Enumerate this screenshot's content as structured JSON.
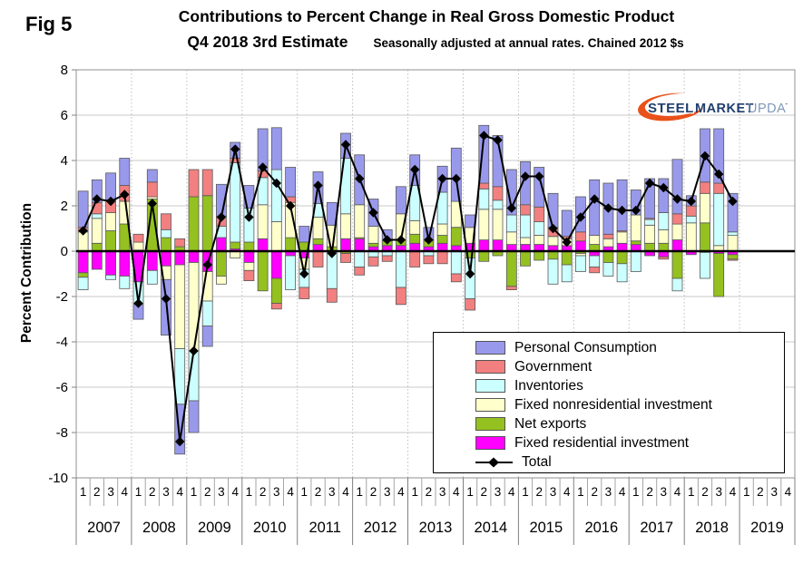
{
  "fig_label": "Fig 5",
  "title": "Contributions to Percent Change in Real Gross Domestic Product",
  "subtitle": {
    "estimate": "Q4 2018 3rd Estimate",
    "note": "Seasonally adjusted at annual rates. Chained 2012 $s"
  },
  "logo": {
    "steel": "STEEL",
    "market": "MARKET",
    "update": "UPDATE",
    "colors": {
      "swoosh": "#E8521A",
      "navy": "#1F3E6E",
      "light": "#7E99B8"
    }
  },
  "y_axis": {
    "label": "Percent Contribution",
    "ticks": [
      8,
      6,
      4,
      2,
      0,
      -2,
      -4,
      -6,
      -8,
      -10
    ],
    "min": -10,
    "max": 8
  },
  "x_axis": {
    "years": [
      "2007",
      "2008",
      "2009",
      "2010",
      "2011",
      "2012",
      "2013",
      "2014",
      "2015",
      "2016",
      "2017",
      "2018",
      "2019"
    ],
    "quarters_per_year": [
      "1",
      "2",
      "3",
      "4"
    ]
  },
  "legend": {
    "items": [
      {
        "name": "Personal Consumption",
        "color": "#9999EC"
      },
      {
        "name": "Government",
        "color": "#F28080"
      },
      {
        "name": "Inventories",
        "color": "#CCFFFF"
      },
      {
        "name": "Fixed nonresidential investment",
        "color": "#FFFFCC"
      },
      {
        "name": "Net exports",
        "color": "#94C11F"
      },
      {
        "name": "Fixed residential investment",
        "color": "#FF00FF"
      }
    ],
    "total_label": "Total"
  },
  "chart_data": {
    "type": "stacked-bar-with-line",
    "title": "Contributions to Percent Change in Real Gross Domestic Product",
    "ylabel": "Percent Contribution",
    "ylim": [
      -10,
      8
    ],
    "grid_step": 2,
    "legend_position": "inside-bottom-right",
    "years": [
      "2007",
      "2008",
      "2009",
      "2010",
      "2011",
      "2012",
      "2013",
      "2014",
      "2015",
      "2016",
      "2017",
      "2018",
      "2019"
    ],
    "categories_note": "quarters 1-4 per year; bars plotted 2007Q1 through 2018Q4, 2019 empty",
    "n_points": 48,
    "stack_order": [
      "Fixed residential investment",
      "Net exports",
      "Fixed nonresidential investment",
      "Inventories",
      "Government",
      "Personal Consumption"
    ],
    "series": [
      {
        "name": "Personal Consumption",
        "color": "#9999EC",
        "values": [
          1.6,
          1.0,
          1.2,
          1.2,
          -0.65,
          0.55,
          -2.45,
          -2.2,
          -1.4,
          -0.9,
          1.4,
          0.7,
          1.0,
          1.85,
          1.85,
          1.3,
          0.7,
          1.4,
          1.0,
          1.1,
          2.2,
          1.2,
          0.5,
          1.2,
          1.35,
          0.55,
          1.15,
          2.35,
          0.55,
          2.55,
          2.25,
          2.0,
          1.9,
          1.75,
          1.5,
          1.15,
          1.55,
          2.45,
          2.25,
          2.25,
          1.1,
          1.75,
          1.5,
          2.4,
          0.45,
          2.35,
          2.4,
          1.7
        ]
      },
      {
        "name": "Government",
        "color": "#F28080",
        "values": [
          0.2,
          0.5,
          0.55,
          0.7,
          0.35,
          0.65,
          0.7,
          0.35,
          1.2,
          1.15,
          0.45,
          0.2,
          -0.45,
          0.3,
          -0.25,
          0.25,
          -0.5,
          -0.7,
          -0.6,
          -0.4,
          -0.35,
          -0.4,
          -0.25,
          -0.75,
          -0.7,
          -0.35,
          -0.55,
          -0.35,
          -0.5,
          0.25,
          0.6,
          -0.15,
          0.45,
          0.65,
          0.4,
          0.1,
          0.4,
          -0.25,
          0.2,
          0.05,
          0.0,
          0.05,
          -0.1,
          0.45,
          0.45,
          0.5,
          0.45,
          -0.05
        ]
      },
      {
        "name": "Inventories",
        "color": "#CCFFFF",
        "values": [
          -0.55,
          0.2,
          -0.2,
          -0.55,
          -1.0,
          -0.6,
          0.35,
          -2.45,
          -2.2,
          -1.1,
          0.5,
          3.5,
          1.5,
          1.2,
          2.3,
          -1.5,
          -0.8,
          0.6,
          -1.6,
          2.45,
          -0.7,
          -0.25,
          -0.2,
          -1.6,
          1.55,
          -0.2,
          1.4,
          -1.0,
          -1.8,
          0.9,
          0.4,
          0.75,
          1.0,
          0.6,
          -1.1,
          -0.75,
          -0.7,
          -0.5,
          -0.6,
          -0.8,
          -0.9,
          0.25,
          0.75,
          -0.55,
          0.3,
          -1.15,
          2.3,
          0.15
        ]
      },
      {
        "name": "Fixed nonresidential investment",
        "color": "#FFFFCC",
        "values": [
          0.85,
          1.1,
          0.8,
          1.0,
          0.35,
          0.1,
          -0.6,
          -3.7,
          -3.9,
          -1.3,
          -0.35,
          -0.3,
          -0.35,
          1.5,
          1.3,
          1.55,
          -0.5,
          0.95,
          0.95,
          1.1,
          1.45,
          0.75,
          0.0,
          1.15,
          0.6,
          0.05,
          0.5,
          1.15,
          0.7,
          1.35,
          1.35,
          0.55,
          0.3,
          0.4,
          0.4,
          0.3,
          -0.1,
          0.4,
          0.35,
          0.5,
          1.15,
          0.8,
          0.6,
          0.7,
          1.25,
          1.3,
          0.25,
          0.7
        ]
      },
      {
        "name": "Net exports",
        "color": "#94C11F",
        "values": [
          -0.2,
          0.35,
          0.9,
          1.2,
          0.05,
          2.3,
          0.6,
          0.2,
          2.4,
          2.45,
          -1.1,
          0.3,
          0.4,
          -1.75,
          -1.1,
          0.6,
          0.4,
          0.25,
          0.2,
          -0.1,
          0.05,
          0.15,
          0.2,
          0.25,
          0.4,
          0.25,
          0.35,
          0.8,
          -0.3,
          -0.45,
          -0.2,
          -1.55,
          -0.65,
          -0.4,
          -0.35,
          -0.6,
          -0.1,
          0.3,
          -0.5,
          -0.55,
          0.15,
          0.35,
          0.35,
          -1.2,
          0.0,
          1.25,
          -1.9,
          -0.2
        ]
      },
      {
        "name": "Fixed residential investment",
        "color": "#FF00FF",
        "values": [
          -0.95,
          -0.8,
          -1.05,
          -1.1,
          -1.35,
          -0.85,
          -0.65,
          -0.6,
          -0.5,
          -0.9,
          0.6,
          0.1,
          -0.5,
          0.55,
          -1.2,
          -0.2,
          -0.3,
          0.3,
          -0.05,
          0.55,
          0.55,
          0.2,
          0.25,
          0.25,
          0.35,
          0.2,
          0.35,
          0.25,
          0.35,
          0.5,
          0.5,
          0.3,
          0.3,
          0.3,
          0.25,
          0.25,
          0.45,
          -0.2,
          0.2,
          0.35,
          0.3,
          -0.2,
          -0.25,
          0.5,
          -0.15,
          -0.05,
          -0.1,
          -0.15
        ]
      }
    ],
    "total": {
      "name": "Total",
      "color": "#000000",
      "marker": "diamond",
      "values": [
        0.9,
        2.3,
        2.2,
        2.5,
        -2.3,
        2.1,
        -2.1,
        -8.4,
        -4.4,
        -0.6,
        1.5,
        4.5,
        1.5,
        3.7,
        3.0,
        2.0,
        -1.0,
        2.9,
        -0.1,
        4.7,
        3.2,
        1.7,
        0.5,
        0.5,
        3.6,
        0.5,
        3.2,
        3.2,
        -1.0,
        5.1,
        4.9,
        1.9,
        3.3,
        3.3,
        1.0,
        0.4,
        1.5,
        2.3,
        1.9,
        1.8,
        1.8,
        3.0,
        2.8,
        2.3,
        2.2,
        4.2,
        3.4,
        2.2
      ]
    }
  }
}
